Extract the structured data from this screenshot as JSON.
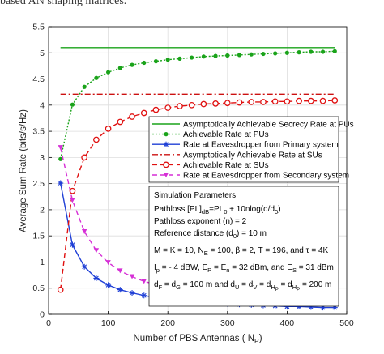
{
  "caption": "based AN shaping matrices.",
  "chart_data": {
    "type": "line",
    "xlabel": "Number of PBS Antennas ( N",
    "xlabel_sub": "P",
    "xlabel_end": ")",
    "ylabel": "Average Sum Rate (bits/s/Hz)",
    "xlim": [
      0,
      500
    ],
    "ylim": [
      0,
      5.5
    ],
    "xticks": [
      0,
      100,
      200,
      300,
      400,
      500
    ],
    "yticks": [
      0,
      0.5,
      1,
      1.5,
      2,
      2.5,
      3,
      3.5,
      4,
      4.5,
      5,
      5.5
    ],
    "legend_position": "right",
    "series": [
      {
        "name": "Asymptotically Achievable Secrecy Rate at PUs",
        "color": "#1aa31a",
        "dash": "",
        "marker": "none",
        "x": [
          20,
          480
        ],
        "y": [
          5.1,
          5.1
        ]
      },
      {
        "name": "Achievable Rate at PUs",
        "color": "#1aa31a",
        "dash": "2,2",
        "marker": "dot",
        "x": [
          20,
          40,
          60,
          80,
          100,
          120,
          140,
          160,
          180,
          200,
          220,
          240,
          260,
          280,
          300,
          320,
          340,
          360,
          380,
          400,
          420,
          440,
          460,
          480
        ],
        "y": [
          2.97,
          4.01,
          4.35,
          4.52,
          4.63,
          4.71,
          4.77,
          4.81,
          4.84,
          4.87,
          4.89,
          4.91,
          4.93,
          4.94,
          4.95,
          4.96,
          4.97,
          4.98,
          4.99,
          5.0,
          5.01,
          5.02,
          5.02,
          5.03
        ]
      },
      {
        "name": "Rate at Eavesdropper from Primary system",
        "color": "#1f3fd6",
        "dash": "",
        "marker": "star",
        "x": [
          20,
          40,
          60,
          80,
          100,
          120,
          140,
          160,
          180,
          200,
          220,
          240,
          260,
          280,
          300,
          320,
          340,
          360,
          380,
          400,
          420,
          440,
          460,
          480
        ],
        "y": [
          2.51,
          1.33,
          0.91,
          0.69,
          0.56,
          0.47,
          0.41,
          0.36,
          0.32,
          0.29,
          0.27,
          0.25,
          0.23,
          0.21,
          0.2,
          0.19,
          0.18,
          0.17,
          0.16,
          0.15,
          0.15,
          0.14,
          0.13,
          0.13
        ]
      },
      {
        "name": "Asymptotically Achievable Rate at SUs",
        "color": "#cc1111",
        "dash": "7,3,2,3",
        "marker": "none",
        "x": [
          20,
          480
        ],
        "y": [
          4.21,
          4.21
        ]
      },
      {
        "name": "Achievable Rate at SUs",
        "color": "#e01010",
        "dash": "6,4",
        "marker": "circle",
        "x": [
          20,
          40,
          60,
          80,
          100,
          120,
          140,
          160,
          180,
          200,
          220,
          240,
          260,
          280,
          300,
          320,
          340,
          360,
          380,
          400,
          420,
          440,
          460,
          480
        ],
        "y": [
          0.47,
          2.36,
          3.0,
          3.34,
          3.55,
          3.68,
          3.78,
          3.85,
          3.91,
          3.95,
          3.98,
          4.0,
          4.02,
          4.03,
          4.04,
          4.05,
          4.06,
          4.06,
          4.07,
          4.07,
          4.08,
          4.08,
          4.08,
          4.09
        ]
      },
      {
        "name": "Rate at Eavesdropper from Secondary system",
        "color": "#d62fd6",
        "dash": "6,4",
        "marker": "triangle",
        "x": [
          20,
          40,
          60,
          80,
          100,
          120,
          140,
          160,
          180,
          200,
          220,
          240,
          260,
          280,
          300,
          320,
          340,
          360,
          380,
          400,
          420,
          440,
          460,
          480
        ],
        "y": [
          3.19,
          2.18,
          1.58,
          1.22,
          0.99,
          0.83,
          0.72,
          0.63,
          0.57,
          0.51,
          0.47,
          0.43,
          0.4,
          0.37,
          0.35,
          0.33,
          0.31,
          0.29,
          0.28,
          0.26,
          0.25,
          0.24,
          0.23,
          0.22
        ]
      }
    ],
    "annotation": {
      "title": "Simulation Parameters:",
      "pathloss_a": "Pathloss [PL]",
      "pathloss_sub_db": "dB",
      "pathloss_b": "=PL",
      "pathloss_sub_0": "0",
      "pathloss_c": " + 10nlog(d/d",
      "pathloss_sub_0b": "0",
      "pathloss_d": ")",
      "exponent": "Pathloss exponent (n) = 2",
      "refdist_a": "Reference distance (d",
      "refdist_sub": "0",
      "refdist_b": ") = 10 m",
      "params_a": "M = K = 10, N",
      "params_sub_e": "E",
      "params_b": " = 100, β = 2, T = 196, and τ = 4K",
      "power_a": "I",
      "power_sub_p": "p",
      "power_b": " = - 4 dBW, E",
      "power_sub_P": "P",
      "power_c": " = E",
      "power_sub_n": "n",
      "power_d": " = 32 dBm, and E",
      "power_sub_S": "S",
      "power_e": " = 31 dBm",
      "dist_a": "d",
      "dist_sub_F": "F",
      "dist_b": " = d",
      "dist_sub_G": "G",
      "dist_c": " = 100 m and d",
      "dist_sub_U": "U",
      "dist_d": " = d",
      "dist_sub_V": "V",
      "dist_e": " = d",
      "dist_sub_H1": "H",
      "dist_sub_P1": "P",
      "dist_f": " = d",
      "dist_sub_H2": "H",
      "dist_sub_P2": "P",
      "dist_g": " = 200 m"
    }
  }
}
